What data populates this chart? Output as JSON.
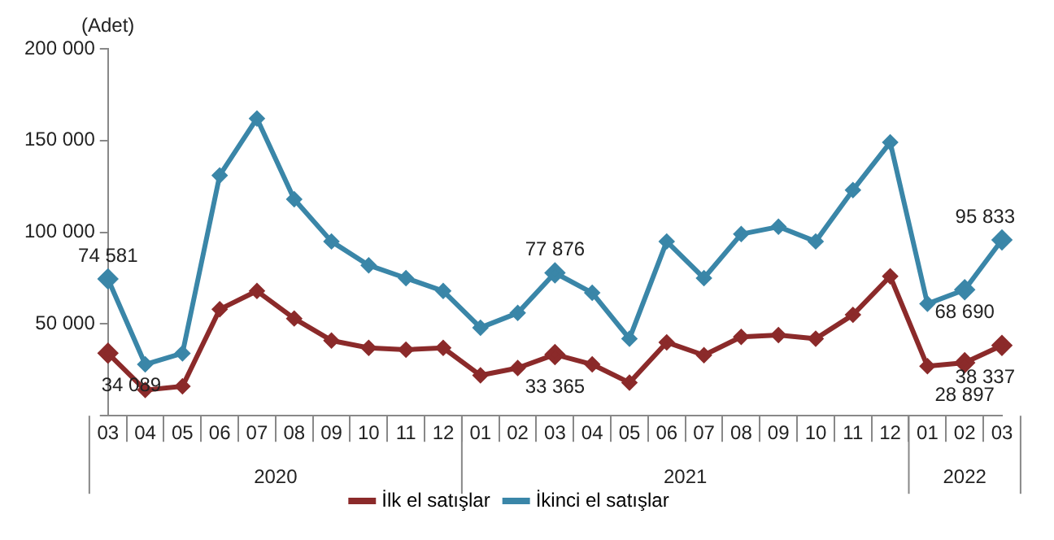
{
  "chart_data": {
    "type": "line",
    "ylabel": "(Adet)",
    "categories": [
      "03",
      "04",
      "05",
      "06",
      "07",
      "08",
      "09",
      "10",
      "11",
      "12",
      "01",
      "02",
      "03",
      "04",
      "05",
      "06",
      "07",
      "08",
      "09",
      "10",
      "11",
      "12",
      "01",
      "02",
      "03"
    ],
    "annotations": [
      "2020",
      "2021",
      "2022"
    ],
    "series": [
      {
        "name": "İlk el satışlar",
        "color": "#8b2a2a",
        "values": [
          34089,
          14000,
          16000,
          58000,
          68000,
          53000,
          41000,
          37000,
          36000,
          37000,
          22000,
          26000,
          33365,
          28000,
          18000,
          40000,
          33000,
          43000,
          44000,
          42000,
          55000,
          76000,
          27000,
          28897,
          38337
        ],
        "value_labels": [
          "34 089",
          null,
          null,
          null,
          null,
          null,
          null,
          null,
          null,
          null,
          null,
          null,
          "33 365",
          null,
          null,
          null,
          null,
          null,
          null,
          null,
          null,
          null,
          null,
          "28 897",
          "38 337"
        ]
      },
      {
        "name": "İkinci el satışlar",
        "color": "#3a86a8",
        "values": [
          74581,
          28000,
          34000,
          131000,
          162000,
          118000,
          95000,
          82000,
          75000,
          68000,
          48000,
          56000,
          77876,
          67000,
          42000,
          95000,
          75000,
          99000,
          103000,
          95000,
          123000,
          149000,
          61000,
          68690,
          95833
        ],
        "value_labels": [
          "74 581",
          null,
          null,
          null,
          null,
          null,
          null,
          null,
          null,
          null,
          null,
          null,
          "77 876",
          null,
          null,
          null,
          null,
          null,
          null,
          null,
          null,
          null,
          null,
          "68 690",
          "95 833"
        ]
      }
    ],
    "ylim": [
      0,
      200000
    ],
    "yticks": [
      {
        "value": 0,
        "label": null
      },
      {
        "value": 50000,
        "label": "50 000"
      },
      {
        "value": 100000,
        "label": "100 000"
      },
      {
        "value": 150000,
        "label": "150 000"
      },
      {
        "value": 200000,
        "label": "200 000"
      }
    ],
    "grid": false,
    "legend": "bottom",
    "marker": "diamond",
    "line_style": "solid"
  }
}
